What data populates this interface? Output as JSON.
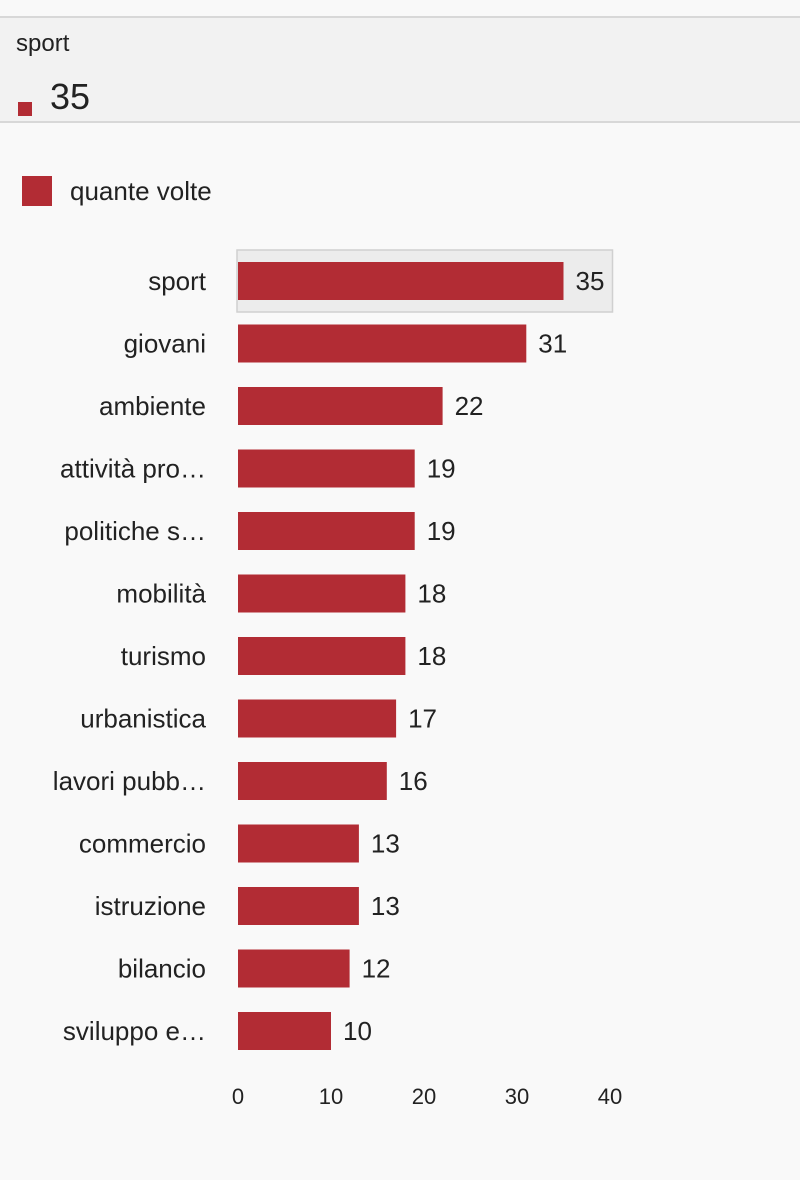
{
  "tooltip": {
    "category": "sport",
    "value": "35"
  },
  "colors": {
    "bar": "#b22c34",
    "highlight_bg": "#ececec",
    "highlight_border": "#d0d0d0"
  },
  "chart_data": {
    "type": "bar",
    "orientation": "horizontal",
    "categories": [
      "sport",
      "giovani",
      "ambiente",
      "attività pro…",
      "politiche s…",
      "mobilità",
      "turismo",
      "urbanistica",
      "lavori pubb…",
      "commercio",
      "istruzione",
      "bilancio",
      "sviluppo e…"
    ],
    "series": [
      {
        "name": "quante volte",
        "values": [
          35,
          31,
          22,
          19,
          19,
          18,
          18,
          17,
          16,
          13,
          13,
          12,
          10
        ]
      }
    ],
    "xticks": [
      0,
      10,
      20,
      30,
      40
    ],
    "xlim": [
      0,
      40
    ],
    "grid": false,
    "legend_position": "top-left",
    "highlighted_category": "sport"
  }
}
